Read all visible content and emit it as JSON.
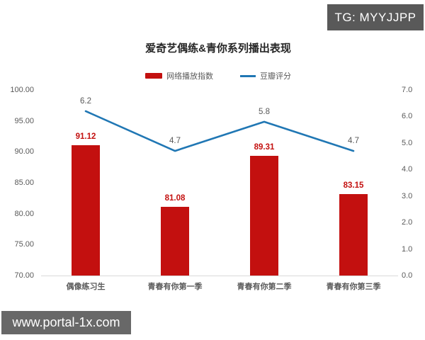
{
  "watermarks": {
    "top_right": "TG: MYYJJPP",
    "bottom_left": "www.portal-1x.com",
    "badge_bg": "#5f5f5f",
    "badge_text_color": "#ffffff"
  },
  "chart_data": {
    "type": "bar+line combo",
    "title": "爱奇艺偶练&青你系列播出表现",
    "categories": [
      "偶像练习生",
      "青春有你第一季",
      "青春有你第二季",
      "青春有你第三季"
    ],
    "series": [
      {
        "name": "网络播放指数",
        "type": "bar",
        "axis": "left",
        "values": [
          91.12,
          81.08,
          89.31,
          83.15
        ],
        "labels": [
          "91.12",
          "81.08",
          "89.31",
          "83.15"
        ],
        "color": "#c3100f"
      },
      {
        "name": "豆瓣评分",
        "type": "line",
        "axis": "right",
        "values": [
          6.2,
          4.7,
          5.8,
          4.7
        ],
        "labels": [
          "6.2",
          "4.7",
          "5.8",
          "4.7"
        ],
        "color": "#2077b4"
      }
    ],
    "left_axis": {
      "min": 70,
      "max": 100,
      "ticks": [
        "100.00",
        "95.00",
        "90.00",
        "85.00",
        "80.00",
        "75.00",
        "70.00"
      ]
    },
    "right_axis": {
      "min": 0,
      "max": 7,
      "ticks": [
        "7.0",
        "6.0",
        "5.0",
        "4.0",
        "3.0",
        "2.0",
        "1.0",
        "0.0"
      ]
    },
    "grid": "off",
    "legend_position": "top-center",
    "label_gray": "#595959"
  }
}
